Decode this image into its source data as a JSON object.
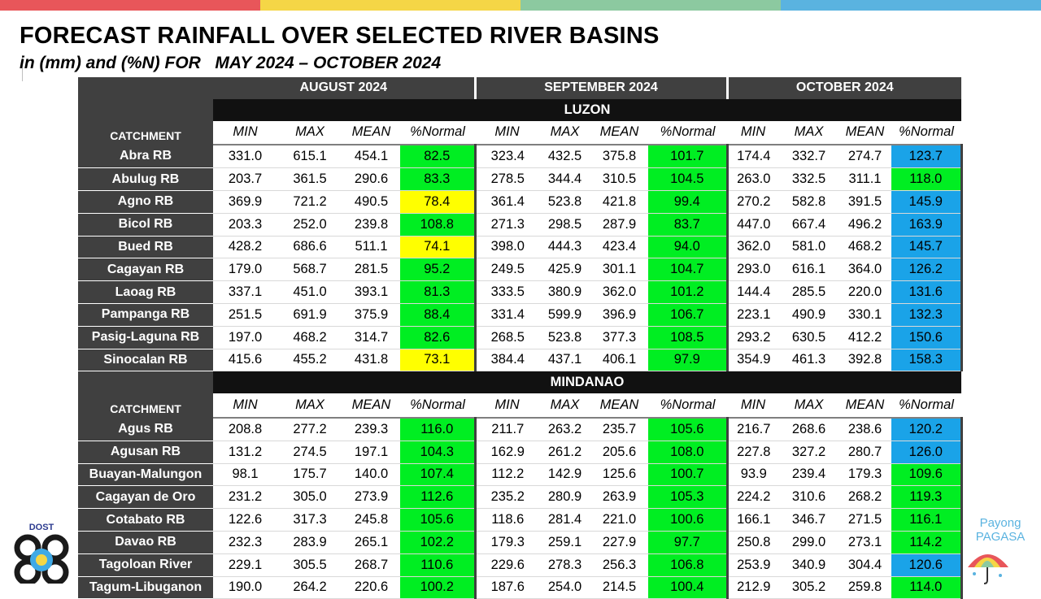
{
  "colors": {
    "top_bar": [
      "#e8565a",
      "#f5d646",
      "#8cc9a0",
      "#5ab3e0"
    ],
    "header_dark": "#404040",
    "region_black": "#111111",
    "green": "#00ee22",
    "yellow": "#ffff00",
    "blue": "#1aa3e8"
  },
  "title": "FORECAST RAINFALL OVER SELECTED RIVER BASINS",
  "subtitle": "in (mm) and (%N) FOR   MAY 2024 – OCTOBER 2024",
  "months": [
    "AUGUST 2024",
    "SEPTEMBER 2024",
    "OCTOBER 2024"
  ],
  "column_headers": [
    "MIN",
    "MAX",
    "MEAN",
    "%Normal"
  ],
  "catchment_label": "CATCHMENT",
  "regions": [
    {
      "name": "LUZON",
      "rows": [
        {
          "name": "Abra RB",
          "values": [
            "331.0",
            "615.1",
            "454.1",
            "82.5",
            "323.4",
            "432.5",
            "375.8",
            "101.7",
            "174.4",
            "332.7",
            "274.7",
            "123.7"
          ],
          "classes": [
            "green",
            "green",
            "blue"
          ]
        },
        {
          "name": "Abulug RB",
          "values": [
            "203.7",
            "361.5",
            "290.6",
            "83.3",
            "278.5",
            "344.4",
            "310.5",
            "104.5",
            "263.0",
            "332.5",
            "311.1",
            "118.0"
          ],
          "classes": [
            "green",
            "green",
            "green"
          ]
        },
        {
          "name": "Agno RB",
          "values": [
            "369.9",
            "721.2",
            "490.5",
            "78.4",
            "361.4",
            "523.8",
            "421.8",
            "99.4",
            "270.2",
            "582.8",
            "391.5",
            "145.9"
          ],
          "classes": [
            "yellow",
            "green",
            "blue"
          ]
        },
        {
          "name": "Bicol RB",
          "values": [
            "203.3",
            "252.0",
            "239.8",
            "108.8",
            "271.3",
            "298.5",
            "287.9",
            "83.7",
            "447.0",
            "667.4",
            "496.2",
            "163.9"
          ],
          "classes": [
            "green",
            "green",
            "blue"
          ]
        },
        {
          "name": "Bued RB",
          "values": [
            "428.2",
            "686.6",
            "511.1",
            "74.1",
            "398.0",
            "444.3",
            "423.4",
            "94.0",
            "362.0",
            "581.0",
            "468.2",
            "145.7"
          ],
          "classes": [
            "yellow",
            "green",
            "blue"
          ]
        },
        {
          "name": "Cagayan RB",
          "values": [
            "179.0",
            "568.7",
            "281.5",
            "95.2",
            "249.5",
            "425.9",
            "301.1",
            "104.7",
            "293.0",
            "616.1",
            "364.0",
            "126.2"
          ],
          "classes": [
            "green",
            "green",
            "blue"
          ]
        },
        {
          "name": "Laoag RB",
          "values": [
            "337.1",
            "451.0",
            "393.1",
            "81.3",
            "333.5",
            "380.9",
            "362.0",
            "101.2",
            "144.4",
            "285.5",
            "220.0",
            "131.6"
          ],
          "classes": [
            "green",
            "green",
            "blue"
          ]
        },
        {
          "name": "Pampanga RB",
          "values": [
            "251.5",
            "691.9",
            "375.9",
            "88.4",
            "331.4",
            "599.9",
            "396.9",
            "106.7",
            "223.1",
            "490.9",
            "330.1",
            "132.3"
          ],
          "classes": [
            "green",
            "green",
            "blue"
          ]
        },
        {
          "name": "Pasig-Laguna RB",
          "values": [
            "197.0",
            "468.2",
            "314.7",
            "82.6",
            "268.5",
            "523.8",
            "377.3",
            "108.5",
            "293.2",
            "630.5",
            "412.2",
            "150.6"
          ],
          "classes": [
            "green",
            "green",
            "blue"
          ]
        },
        {
          "name": "Sinocalan RB",
          "values": [
            "415.6",
            "455.2",
            "431.8",
            "73.1",
            "384.4",
            "437.1",
            "406.1",
            "97.9",
            "354.9",
            "461.3",
            "392.8",
            "158.3"
          ],
          "classes": [
            "yellow",
            "green",
            "blue"
          ]
        }
      ]
    },
    {
      "name": "MINDANAO",
      "rows": [
        {
          "name": "Agus RB",
          "values": [
            "208.8",
            "277.2",
            "239.3",
            "116.0",
            "211.7",
            "263.2",
            "235.7",
            "105.6",
            "216.7",
            "268.6",
            "238.6",
            "120.2"
          ],
          "classes": [
            "green",
            "green",
            "blue"
          ]
        },
        {
          "name": "Agusan RB",
          "values": [
            "131.2",
            "274.5",
            "197.1",
            "104.3",
            "162.9",
            "261.2",
            "205.6",
            "108.0",
            "227.8",
            "327.2",
            "280.7",
            "126.0"
          ],
          "classes": [
            "green",
            "green",
            "blue"
          ]
        },
        {
          "name": "Buayan-Malungon",
          "values": [
            "98.1",
            "175.7",
            "140.0",
            "107.4",
            "112.2",
            "142.9",
            "125.6",
            "100.7",
            "93.9",
            "239.4",
            "179.3",
            "109.6"
          ],
          "classes": [
            "green",
            "green",
            "green"
          ]
        },
        {
          "name": "Cagayan de Oro",
          "values": [
            "231.2",
            "305.0",
            "273.9",
            "112.6",
            "235.2",
            "280.9",
            "263.9",
            "105.3",
            "224.2",
            "310.6",
            "268.2",
            "119.3"
          ],
          "classes": [
            "green",
            "green",
            "green"
          ]
        },
        {
          "name": "Cotabato RB",
          "values": [
            "122.6",
            "317.3",
            "245.8",
            "105.6",
            "118.6",
            "281.4",
            "221.0",
            "100.6",
            "166.1",
            "346.7",
            "271.5",
            "116.1"
          ],
          "classes": [
            "green",
            "green",
            "green"
          ]
        },
        {
          "name": "Davao RB",
          "values": [
            "232.3",
            "283.9",
            "265.1",
            "102.2",
            "179.3",
            "259.1",
            "227.9",
            "97.7",
            "250.8",
            "299.0",
            "273.1",
            "114.2"
          ],
          "classes": [
            "green",
            "green",
            "green"
          ]
        },
        {
          "name": "Tagoloan River",
          "values": [
            "229.1",
            "305.5",
            "268.7",
            "110.6",
            "229.6",
            "278.3",
            "256.3",
            "106.8",
            "253.9",
            "340.9",
            "304.4",
            "120.6"
          ],
          "classes": [
            "green",
            "green",
            "blue"
          ]
        },
        {
          "name": "Tagum-Libuganon",
          "values": [
            "190.0",
            "264.2",
            "220.6",
            "100.2",
            "187.6",
            "254.0",
            "214.5",
            "100.4",
            "212.9",
            "305.2",
            "259.8",
            "114.0"
          ],
          "classes": [
            "green",
            "green",
            "green"
          ]
        }
      ]
    }
  ],
  "logos": {
    "dost": {
      "text": "DOST",
      "icon": "dost-logo-icon"
    },
    "payong": {
      "text_line1": "Payong",
      "text_line2": "PAGASA",
      "icon": "umbrella-logo-icon"
    }
  }
}
